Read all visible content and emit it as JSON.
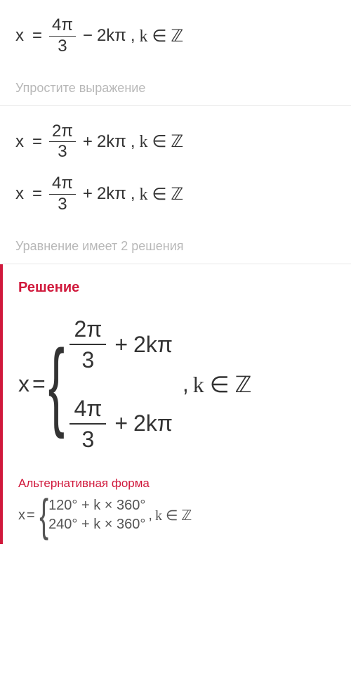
{
  "colors": {
    "accent": "#d0183b",
    "text": "#333333",
    "hint": "#b8b8b8",
    "divider": "#e8e8e8",
    "altText": "#555555"
  },
  "typography": {
    "hint_fontsize": 18,
    "eq_fontsize": 24,
    "solution_title_fontsize": 20,
    "big_eq_fontsize": 32,
    "alt_title_fontsize": 17,
    "alt_eq_fontsize": 20
  },
  "eq1": {
    "lhs": "x",
    "eq": "=",
    "frac_num": "4π",
    "frac_den": "3",
    "op": "−",
    "term": "2kπ",
    "comma": ",",
    "cond": "k ∈ ℤ"
  },
  "hint1": "Упростите выражение",
  "eq2": {
    "lhs": "x",
    "eq": "=",
    "frac_num": "2π",
    "frac_den": "3",
    "op": "+",
    "term": "2kπ",
    "comma": ",",
    "cond": "k ∈ ℤ"
  },
  "eq3": {
    "lhs": "x",
    "eq": "=",
    "frac_num": "4π",
    "frac_den": "3",
    "op": "+",
    "term": "2kπ",
    "comma": ",",
    "cond": "k ∈ ℤ"
  },
  "hint2": "Уравнение имеет 2 решения",
  "solution": {
    "title": "Решение",
    "lhs": "x",
    "eq": "=",
    "line1": {
      "frac_num": "2π",
      "frac_den": "3",
      "op": "+",
      "term": "2kπ"
    },
    "line2": {
      "frac_num": "4π",
      "frac_den": "3",
      "op": "+",
      "term": "2kπ"
    },
    "comma": ",",
    "cond": "k ∈ ℤ"
  },
  "alt": {
    "title": "Альтернативная форма",
    "lhs": "x",
    "eq": "=",
    "line1": "120° + k × 360°",
    "line2": "240° + k × 360°",
    "comma": ",",
    "cond": "k ∈ ℤ"
  }
}
